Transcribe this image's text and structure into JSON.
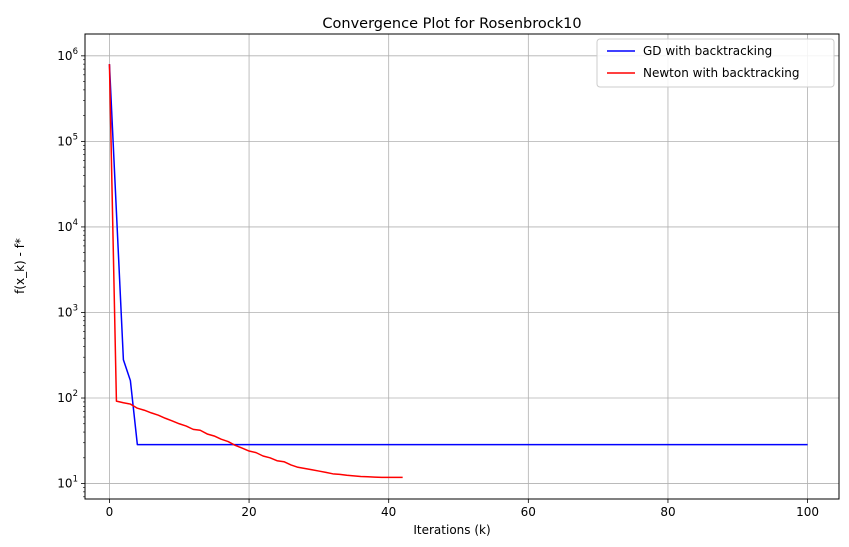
{
  "chart_data": {
    "type": "line",
    "title": "Convergence Plot for Rosenbrock10",
    "xlabel": "Iterations (k)",
    "ylabel": "f(x_k) - f*",
    "xlim": [
      -3.5,
      104.5
    ],
    "ylim": [
      6.6,
      1800000
    ],
    "yscale": "log",
    "grid": true,
    "legend_position": "top-right",
    "x_ticks": [
      0,
      20,
      40,
      60,
      80,
      100
    ],
    "x_tick_labels": [
      "0",
      "20",
      "40",
      "60",
      "80",
      "100"
    ],
    "y_ticks": [
      10,
      100,
      1000,
      10000,
      100000,
      1000000
    ],
    "y_tick_bases": [
      "10",
      "10",
      "10",
      "10",
      "10",
      "10"
    ],
    "y_tick_exponents": [
      "1",
      "2",
      "3",
      "4",
      "5",
      "6"
    ],
    "series": [
      {
        "name": "GD with backtracking",
        "color": "#0000ff",
        "x": [
          0,
          1,
          2,
          3,
          4,
          100
        ],
        "y": [
          800000,
          15000,
          280,
          160,
          28.5,
          28.5
        ]
      },
      {
        "name": "Newton with backtracking",
        "color": "#ff0000",
        "x": [
          0,
          1,
          2,
          3,
          4,
          5,
          6,
          7,
          8,
          9,
          10,
          11,
          12,
          13,
          14,
          15,
          16,
          17,
          18,
          19,
          20,
          21,
          22,
          23,
          24,
          25,
          26,
          27,
          28,
          29,
          30,
          31,
          32,
          33,
          34,
          35,
          36,
          37,
          38,
          39,
          40,
          41,
          42
        ],
        "y": [
          800000,
          92,
          88,
          85,
          76,
          72,
          67,
          63,
          58,
          54,
          50,
          47,
          43,
          42,
          38,
          36,
          33,
          31,
          28,
          26,
          24,
          23,
          21,
          20,
          18.5,
          18,
          16.5,
          15.5,
          15,
          14.5,
          14,
          13.5,
          13,
          12.8,
          12.5,
          12.3,
          12.1,
          12,
          11.9,
          11.8,
          11.8,
          11.8,
          11.8
        ]
      }
    ]
  }
}
